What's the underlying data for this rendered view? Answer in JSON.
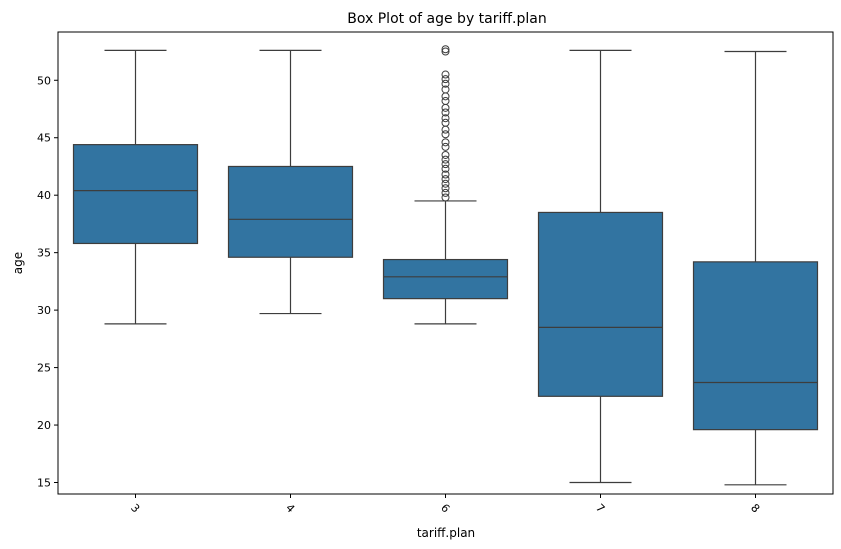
{
  "chart_data": {
    "type": "box",
    "title": "Box Plot of age by tariff.plan",
    "xlabel": "tariff.plan",
    "ylabel": "age",
    "categories": [
      "3",
      "4",
      "6",
      "7",
      "8"
    ],
    "ylim": [
      14.0,
      54.2
    ],
    "yticks": [
      15,
      20,
      25,
      30,
      35,
      40,
      45,
      50
    ],
    "xtick_rotation": 45,
    "grid": false,
    "box_color": "#3274a1",
    "line_color": "#3d3d3d",
    "boxes": [
      {
        "category": "3",
        "whisker_low": 28.8,
        "q1": 35.8,
        "median": 40.4,
        "q3": 44.4,
        "whisker_high": 52.6,
        "outliers": []
      },
      {
        "category": "4",
        "whisker_low": 29.7,
        "q1": 34.6,
        "median": 37.9,
        "q3": 42.5,
        "whisker_high": 52.6,
        "outliers": []
      },
      {
        "category": "6",
        "whisker_low": 28.8,
        "q1": 31.0,
        "median": 32.9,
        "q3": 34.4,
        "whisker_high": 39.5,
        "outliers": [
          39.8,
          40.2,
          40.6,
          41.0,
          41.4,
          41.8,
          42.3,
          42.7,
          43.1,
          43.5,
          44.2,
          44.6,
          45.3,
          45.7,
          46.3,
          46.7,
          47.2,
          47.6,
          48.2,
          48.6,
          49.2,
          49.7,
          50.1,
          50.5,
          52.5,
          52.7
        ]
      },
      {
        "category": "7",
        "whisker_low": 15.0,
        "q1": 22.5,
        "median": 28.5,
        "q3": 38.5,
        "whisker_high": 52.6,
        "outliers": []
      },
      {
        "category": "8",
        "whisker_low": 14.8,
        "q1": 19.6,
        "median": 23.7,
        "q3": 34.2,
        "whisker_high": 52.5,
        "outliers": []
      }
    ]
  }
}
